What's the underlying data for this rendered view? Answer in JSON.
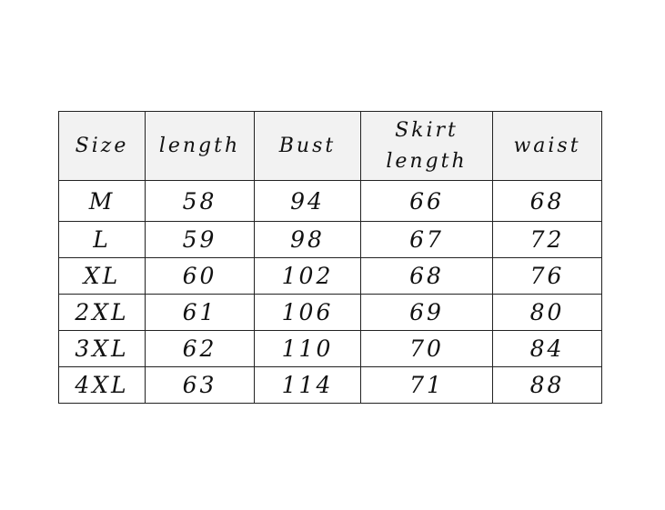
{
  "headers": [
    "Size",
    "length",
    "Bust",
    "Skirt length",
    "waist"
  ],
  "rows": [
    [
      "M",
      "58",
      "94",
      "66",
      "68"
    ],
    [
      "L",
      "59",
      "98",
      "67",
      "72"
    ],
    [
      "XL",
      "60",
      "102",
      "68",
      "76"
    ],
    [
      "2XL",
      "61",
      "106",
      "69",
      "80"
    ],
    [
      "3XL",
      "62",
      "110",
      "70",
      "84"
    ],
    [
      "4XL",
      "63",
      "114",
      "71",
      "88"
    ]
  ]
}
